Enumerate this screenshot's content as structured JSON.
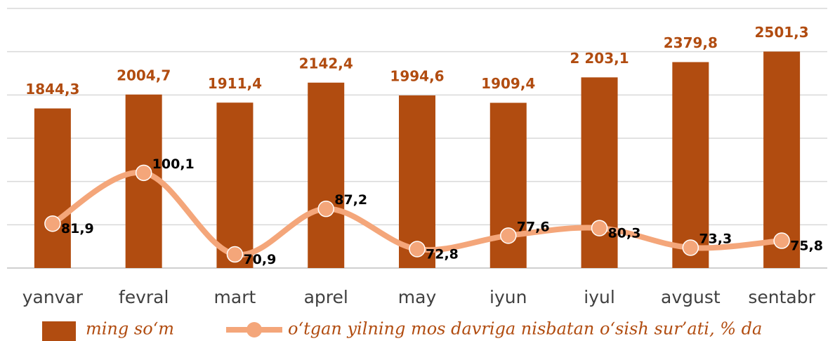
{
  "chart_data": {
    "type": "bar_line",
    "categories": [
      "yanvar",
      "fevral",
      "mart",
      "aprel",
      "may",
      "iyun",
      "iyul",
      "avgust",
      "sentabr"
    ],
    "series": [
      {
        "name": "ming so‘m",
        "type": "bar",
        "color": "#b14c10",
        "values": [
          1844.3,
          2004.7,
          1911.4,
          2142.4,
          1994.6,
          1909.4,
          2203.1,
          2379.8,
          2501.3
        ],
        "value_labels": [
          "1844,3",
          "2004,7",
          "1911,4",
          "2142,4",
          "1994,6",
          "1909,4",
          "2 203,1",
          "2379,8",
          "2501,3"
        ]
      },
      {
        "name": "o‘tgan yilning mos davriga nisbatan o‘sish sur’ati, % da",
        "type": "line",
        "axis": "y2",
        "color": "#f4a67a",
        "values": [
          81.9,
          100.1,
          70.9,
          87.2,
          72.8,
          77.6,
          80.3,
          73.3,
          75.8
        ],
        "value_labels": [
          "81,9",
          "100,1",
          "70,9",
          "87,2",
          "72,8",
          "77,6",
          "80,3",
          "73,3",
          "75,8"
        ]
      }
    ],
    "ylim": [
      0,
      3000
    ],
    "yticks": [
      0,
      500,
      1000,
      1500,
      2000,
      2500,
      3000
    ],
    "y2lim": [
      66,
      159
    ],
    "grid": true
  }
}
